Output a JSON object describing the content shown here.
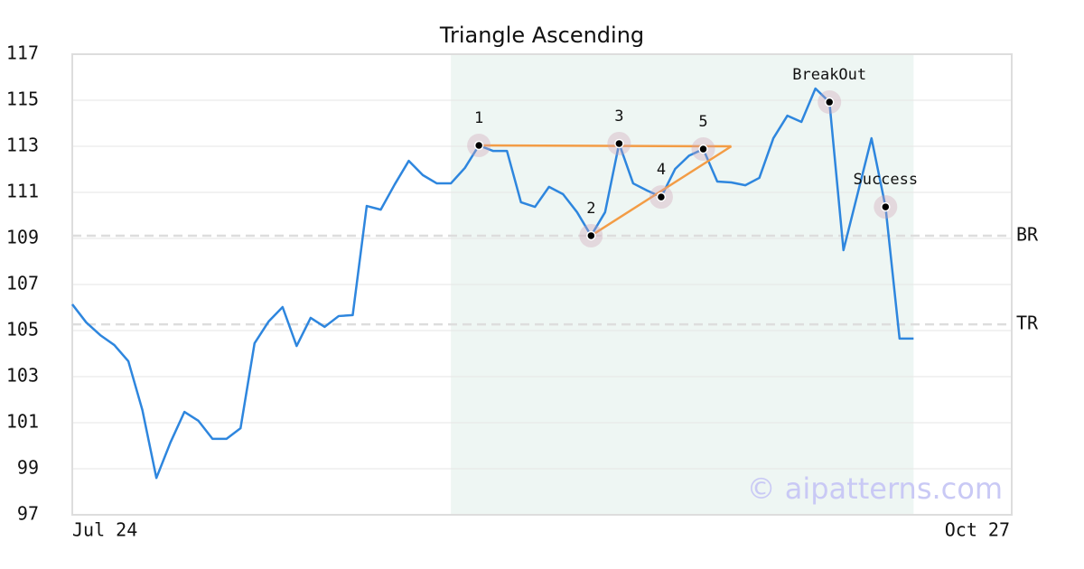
{
  "chart_data": {
    "type": "line",
    "title": "Triangle Ascending",
    "values": [
      106.14,
      105.35,
      104.8,
      104.37,
      103.67,
      101.55,
      98.6,
      100.14,
      101.47,
      101.08,
      100.3,
      100.3,
      100.76,
      104.45,
      105.39,
      106.02,
      104.33,
      105.55,
      105.16,
      105.63,
      105.67,
      110.41,
      110.25,
      111.35,
      112.37,
      111.75,
      111.39,
      111.39,
      112.06,
      113.04,
      112.8,
      112.8,
      110.57,
      110.37,
      111.24,
      110.92,
      110.14,
      109.12,
      110.14,
      113.12,
      111.39,
      111.08,
      110.8,
      112.02,
      112.6,
      112.88,
      111.47,
      111.43,
      111.31,
      111.63,
      113.35,
      114.33,
      114.06,
      115.51,
      114.92,
      108.49,
      110.92,
      113.35,
      110.37,
      104.65,
      104.65
    ],
    "color": "#2e86de",
    "xlim": [
      0,
      67
    ],
    "x_labels": [
      "Jul 24",
      "Oct 27"
    ],
    "ylim": [
      97,
      117
    ],
    "yticks": [
      97,
      99,
      101,
      103,
      105,
      107,
      109,
      111,
      113,
      115,
      117
    ],
    "grid": true,
    "highlight": {
      "from": 27,
      "to": 60,
      "color": "#eef6f3"
    },
    "hlines": [
      {
        "label": "BR",
        "value": 109.12
      },
      {
        "label": "TR",
        "value": 105.27
      }
    ],
    "triangle_lines": {
      "color": "#f39c45",
      "lines": [
        {
          "x": [
            29,
            47
          ],
          "y": [
            113.04,
            113
          ]
        },
        {
          "x": [
            37,
            47
          ],
          "y": [
            109.12,
            113
          ]
        }
      ]
    },
    "annotations": [
      {
        "label": "1",
        "index": 29
      },
      {
        "label": "2",
        "index": 37
      },
      {
        "label": "3",
        "index": 39
      },
      {
        "label": "4",
        "index": 42
      },
      {
        "label": "5",
        "index": 45
      },
      {
        "label": "BreakOut",
        "index": 54
      },
      {
        "label": "Success",
        "index": 58
      }
    ],
    "watermark": "© aipatterns.com"
  }
}
